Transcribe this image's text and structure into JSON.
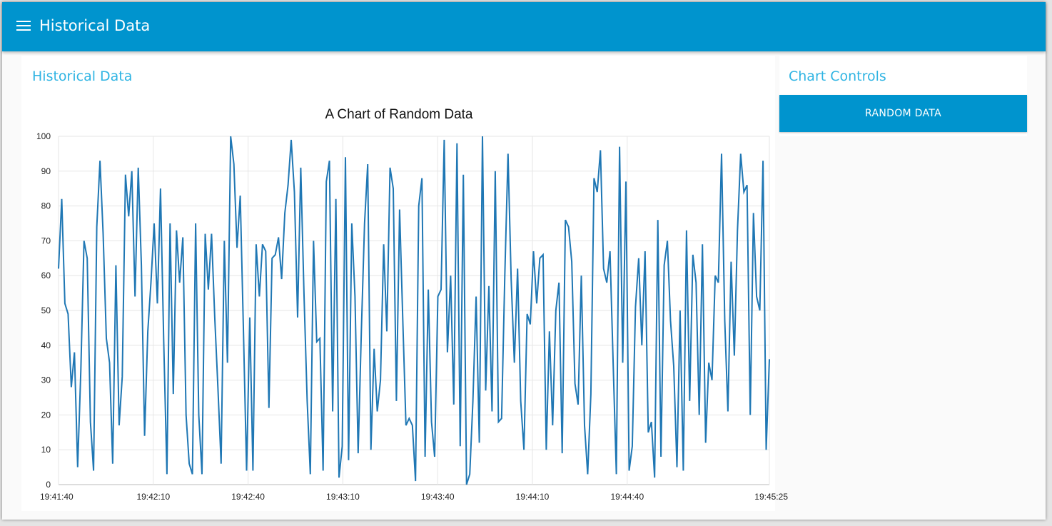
{
  "header": {
    "title": "Historical Data"
  },
  "chart_card": {
    "title": "Historical Data"
  },
  "controls_card": {
    "title": "Chart Controls",
    "button_label": "RANDOM DATA"
  },
  "colors": {
    "header": "#0094ce",
    "accent_title": "#2fb4e3",
    "series_line": "#1f77b4"
  },
  "chart_data": {
    "type": "line",
    "title": "A Chart of Random Data",
    "xlabel": "",
    "ylabel": "",
    "ylim": [
      0,
      100
    ],
    "yticks": [
      0,
      10,
      20,
      30,
      40,
      50,
      60,
      70,
      80,
      90,
      100
    ],
    "xlim": [
      "19:41:40",
      "19:45:25"
    ],
    "xticks": [
      "19:41:40",
      "19:42:10",
      "19:42:40",
      "19:43:10",
      "19:43:40",
      "19:44:10",
      "19:44:40",
      "19:45:25"
    ],
    "grid": true,
    "series": [
      {
        "x_start": "19:41:40",
        "x_end": "19:45:25",
        "values": [
          62,
          82,
          52,
          49,
          28,
          38,
          5,
          33,
          70,
          65,
          18,
          4,
          74,
          93,
          72,
          42,
          35,
          6,
          63,
          17,
          31,
          89,
          77,
          90,
          54,
          91,
          63,
          14,
          44,
          58,
          75,
          52,
          85,
          41,
          3,
          75,
          26,
          73,
          58,
          71,
          20,
          6,
          3,
          75,
          20,
          3,
          72,
          56,
          72,
          48,
          28,
          6,
          70,
          35,
          100,
          92,
          68,
          83,
          45,
          4,
          48,
          4,
          69,
          54,
          69,
          67,
          22,
          65,
          66,
          71,
          59,
          78,
          86,
          99,
          84,
          48,
          91,
          55,
          24,
          3,
          70,
          41,
          42,
          4,
          87,
          93,
          21,
          82,
          2,
          11,
          94,
          7,
          75,
          54,
          9,
          44,
          75,
          92,
          10,
          39,
          21,
          30,
          69,
          44,
          91,
          85,
          24,
          79,
          47,
          17,
          19,
          17,
          1,
          80,
          88,
          8,
          56,
          18,
          8,
          54,
          56,
          99,
          38,
          60,
          23,
          98,
          11,
          89,
          0,
          3,
          24,
          54,
          12,
          100,
          27,
          57,
          21,
          90,
          18,
          19,
          60,
          95,
          59,
          35,
          62,
          24,
          10,
          49,
          46,
          67,
          52,
          65,
          66,
          10,
          44,
          17,
          50,
          58,
          9,
          76,
          74,
          64,
          29,
          23,
          60,
          17,
          3,
          26,
          88,
          84,
          96,
          62,
          58,
          67,
          35,
          3,
          97,
          35,
          87,
          4,
          11,
          51,
          65,
          40,
          67,
          15,
          18,
          2,
          76,
          8,
          63,
          70,
          47,
          34,
          5,
          50,
          4,
          73,
          24,
          66,
          58,
          20,
          69,
          12,
          35,
          30,
          60,
          58,
          95,
          47,
          21,
          64,
          37,
          73,
          95,
          84,
          86,
          20,
          78,
          54,
          50,
          93,
          10,
          36
        ]
      }
    ]
  }
}
